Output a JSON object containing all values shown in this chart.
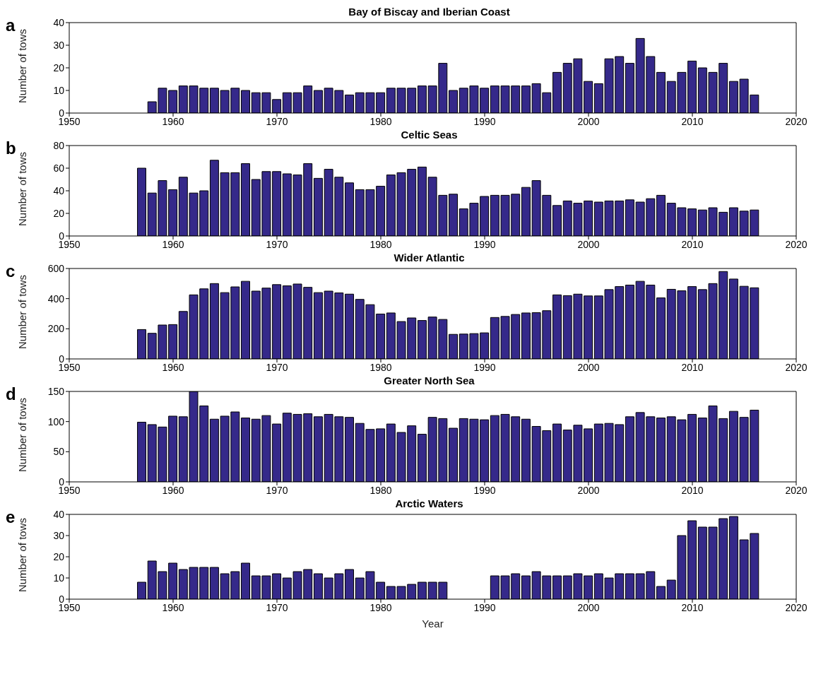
{
  "chart_data": [
    {
      "type": "bar",
      "title": "Bay of Biscay and Iberian Coast",
      "annotations": [
        "a"
      ],
      "ylabel": "Number of tows",
      "color": "#35298a",
      "xlim": [
        1950,
        2020
      ],
      "xticks": [
        1950,
        1960,
        1970,
        1980,
        1990,
        2000,
        2010,
        2020
      ],
      "ylim": [
        0,
        40
      ],
      "yticks": [
        0,
        10,
        20,
        30,
        40
      ],
      "grid": false,
      "x": [
        1958,
        1959,
        1960,
        1961,
        1962,
        1963,
        1964,
        1965,
        1966,
        1967,
        1968,
        1969,
        1970,
        1971,
        1972,
        1973,
        1974,
        1975,
        1976,
        1977,
        1978,
        1979,
        1980,
        1981,
        1982,
        1983,
        1984,
        1985,
        1986,
        1987,
        1988,
        1989,
        1990,
        1991,
        1992,
        1993,
        1994,
        1995,
        1996,
        1997,
        1998,
        1999,
        2000,
        2001,
        2002,
        2003,
        2004,
        2005,
        2006,
        2007,
        2008,
        2009,
        2010,
        2011,
        2012,
        2013,
        2014,
        2015,
        2016
      ],
      "values": [
        5,
        11,
        10,
        12,
        12,
        11,
        11,
        10,
        11,
        10,
        9,
        9,
        6,
        9,
        9,
        12,
        10,
        11,
        10,
        8,
        9,
        9,
        9,
        11,
        11,
        11,
        12,
        12,
        22,
        10,
        11,
        12,
        11,
        12,
        12,
        12,
        12,
        13,
        9,
        18,
        22,
        24,
        14,
        13,
        24,
        25,
        22,
        33,
        25,
        18,
        14,
        18,
        23,
        20,
        18,
        22,
        14,
        15,
        8
      ]
    },
    {
      "type": "bar",
      "title": "Celtic Seas",
      "annotations": [
        "b"
      ],
      "ylabel": "Number of tows",
      "color": "#35298a",
      "xlim": [
        1950,
        2020
      ],
      "xticks": [
        1950,
        1960,
        1970,
        1980,
        1990,
        2000,
        2010,
        2020
      ],
      "ylim": [
        0,
        80
      ],
      "yticks": [
        0,
        20,
        40,
        60,
        80
      ],
      "grid": false,
      "x": [
        1957,
        1958,
        1959,
        1960,
        1961,
        1962,
        1963,
        1964,
        1965,
        1966,
        1967,
        1968,
        1969,
        1970,
        1971,
        1972,
        1973,
        1974,
        1975,
        1976,
        1977,
        1978,
        1979,
        1980,
        1981,
        1982,
        1983,
        1984,
        1985,
        1986,
        1987,
        1988,
        1989,
        1990,
        1991,
        1992,
        1993,
        1994,
        1995,
        1996,
        1997,
        1998,
        1999,
        2000,
        2001,
        2002,
        2003,
        2004,
        2005,
        2006,
        2007,
        2008,
        2009,
        2010,
        2011,
        2012,
        2013,
        2014,
        2015,
        2016
      ],
      "values": [
        60,
        38,
        49,
        41,
        52,
        38,
        40,
        67,
        56,
        56,
        64,
        50,
        57,
        57,
        55,
        54,
        64,
        51,
        59,
        52,
        47,
        41,
        41,
        44,
        54,
        56,
        59,
        61,
        52,
        36,
        37,
        24,
        29,
        35,
        36,
        36,
        37,
        43,
        49,
        36,
        27,
        31,
        29,
        31,
        30,
        31,
        31,
        32,
        30,
        33,
        36,
        29,
        25,
        24,
        23,
        25,
        21,
        25,
        22,
        23
      ]
    },
    {
      "type": "bar",
      "title": "Wider Atlantic",
      "annotations": [
        "c"
      ],
      "ylabel": "Number of tows",
      "color": "#35298a",
      "xlim": [
        1950,
        2020
      ],
      "xticks": [
        1950,
        1960,
        1970,
        1980,
        1990,
        2000,
        2010,
        2020
      ],
      "ylim": [
        0,
        600
      ],
      "yticks": [
        0,
        200,
        400,
        600
      ],
      "grid": false,
      "x": [
        1957,
        1958,
        1959,
        1960,
        1961,
        1962,
        1963,
        1964,
        1965,
        1966,
        1967,
        1968,
        1969,
        1970,
        1971,
        1972,
        1973,
        1974,
        1975,
        1976,
        1977,
        1978,
        1979,
        1980,
        1981,
        1982,
        1983,
        1984,
        1985,
        1986,
        1987,
        1988,
        1989,
        1990,
        1991,
        1992,
        1993,
        1994,
        1995,
        1996,
        1997,
        1998,
        1999,
        2000,
        2001,
        2002,
        2003,
        2004,
        2005,
        2006,
        2007,
        2008,
        2009,
        2010,
        2011,
        2012,
        2013,
        2014,
        2015,
        2016
      ],
      "values": [
        195,
        170,
        225,
        228,
        315,
        425,
        465,
        500,
        440,
        478,
        515,
        450,
        470,
        493,
        485,
        497,
        475,
        440,
        450,
        438,
        430,
        395,
        360,
        298,
        305,
        248,
        272,
        255,
        278,
        262,
        163,
        165,
        168,
        173,
        275,
        282,
        295,
        305,
        307,
        320,
        425,
        420,
        430,
        418,
        418,
        460,
        480,
        490,
        515,
        490,
        405,
        462,
        452,
        480,
        460,
        500,
        580,
        530,
        482,
        472
      ]
    },
    {
      "type": "bar",
      "title": "Greater North Sea",
      "annotations": [
        "d"
      ],
      "ylabel": "Number of tows",
      "color": "#35298a",
      "xlim": [
        1950,
        2020
      ],
      "xticks": [
        1950,
        1960,
        1970,
        1980,
        1990,
        2000,
        2010,
        2020
      ],
      "ylim": [
        0,
        150
      ],
      "yticks": [
        0,
        50,
        100,
        150
      ],
      "grid": false,
      "x": [
        1957,
        1958,
        1959,
        1960,
        1961,
        1962,
        1963,
        1964,
        1965,
        1966,
        1967,
        1968,
        1969,
        1970,
        1971,
        1972,
        1973,
        1974,
        1975,
        1976,
        1977,
        1978,
        1979,
        1980,
        1981,
        1982,
        1983,
        1984,
        1985,
        1986,
        1987,
        1988,
        1989,
        1990,
        1991,
        1992,
        1993,
        1994,
        1995,
        1996,
        1997,
        1998,
        1999,
        2000,
        2001,
        2002,
        2003,
        2004,
        2005,
        2006,
        2007,
        2008,
        2009,
        2010,
        2011,
        2012,
        2013,
        2014,
        2015,
        2016
      ],
      "values": [
        99,
        95,
        91,
        109,
        108,
        150,
        126,
        104,
        109,
        116,
        106,
        104,
        110,
        96,
        114,
        112,
        113,
        108,
        112,
        108,
        107,
        97,
        87,
        88,
        96,
        82,
        93,
        79,
        107,
        105,
        89,
        105,
        104,
        103,
        110,
        112,
        108,
        104,
        92,
        85,
        96,
        86,
        94,
        88,
        96,
        97,
        95,
        108,
        115,
        108,
        106,
        108,
        103,
        112,
        106,
        126,
        105,
        117,
        107,
        119
      ]
    },
    {
      "type": "bar",
      "title": "Arctic Waters",
      "annotations": [
        "e"
      ],
      "xlabel": "Year",
      "ylabel": "Number of tows",
      "color": "#35298a",
      "xlim": [
        1950,
        2020
      ],
      "xticks": [
        1950,
        1960,
        1970,
        1980,
        1990,
        2000,
        2010,
        2020
      ],
      "ylim": [
        0,
        40
      ],
      "yticks": [
        0,
        10,
        20,
        30,
        40
      ],
      "grid": false,
      "x": [
        1957,
        1958,
        1959,
        1960,
        1961,
        1962,
        1963,
        1964,
        1965,
        1966,
        1967,
        1968,
        1969,
        1970,
        1971,
        1972,
        1973,
        1974,
        1975,
        1976,
        1977,
        1978,
        1979,
        1980,
        1981,
        1982,
        1983,
        1984,
        1985,
        1986,
        1987,
        1988,
        1989,
        1990,
        1991,
        1992,
        1993,
        1994,
        1995,
        1996,
        1997,
        1998,
        1999,
        2000,
        2001,
        2002,
        2003,
        2004,
        2005,
        2006,
        2007,
        2008,
        2009,
        2010,
        2011,
        2012,
        2013,
        2014,
        2015,
        2016
      ],
      "values": [
        8,
        18,
        13,
        17,
        14,
        15,
        15,
        15,
        12,
        13,
        17,
        11,
        11,
        12,
        10,
        13,
        14,
        12,
        10,
        12,
        14,
        10,
        13,
        8,
        6,
        6,
        7,
        8,
        8,
        8,
        0,
        0,
        0,
        0,
        11,
        11,
        12,
        11,
        13,
        11,
        11,
        11,
        12,
        11,
        12,
        10,
        12,
        12,
        12,
        13,
        6,
        9,
        30,
        37,
        34,
        34,
        38,
        39,
        28,
        31
      ]
    }
  ]
}
